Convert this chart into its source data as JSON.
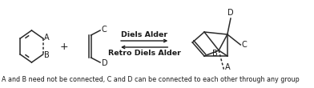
{
  "background_color": "#ffffff",
  "text_color": "#1a1a1a",
  "arrow_color": "#1a1a1a",
  "diene_label_A": "A",
  "diene_label_B": "B",
  "dienophile_label_C": "C",
  "dienophile_label_D": "D",
  "plus_sign": "+",
  "forward_label": "Diels Alder",
  "reverse_label": "Retro Diels Alder",
  "footnote": "A and B need not be connected, C and D can be connected to each other through any group",
  "footnote_fontsize": 5.8,
  "label_fontsize": 7.0,
  "arrow_label_fontsize": 6.8,
  "structure_line_color": "#2a2a2a",
  "dashed_line_color": "#2a2a2a"
}
